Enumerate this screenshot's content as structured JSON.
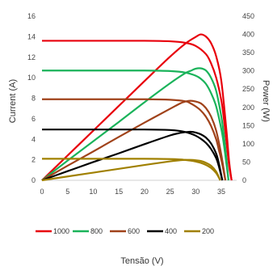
{
  "chart_data": {
    "type": "line",
    "title": "",
    "xlabel": "Tensão (V)",
    "ylabel_left": "Current (A)",
    "ylabel_right": "Power (W)",
    "xlim": [
      0,
      40
    ],
    "ylim_left": [
      0,
      16
    ],
    "ylim_right": [
      0,
      450
    ],
    "x_ticks": [
      0,
      5,
      10,
      15,
      20,
      25,
      30,
      35
    ],
    "y_left_ticks": [
      0,
      2,
      4,
      6,
      8,
      10,
      12,
      14,
      16
    ],
    "y_right_ticks": [
      0,
      50,
      100,
      150,
      200,
      250,
      300,
      350,
      400,
      450
    ],
    "grid": false,
    "legend_position": "bottom",
    "series": [
      {
        "name": "1000",
        "color": "#e8000b",
        "current": {
          "x": [
            0,
            10,
            20,
            25,
            28,
            30,
            32,
            33,
            34,
            35,
            35.5,
            36,
            36.5,
            37
          ],
          "y": [
            13.6,
            13.6,
            13.6,
            13.55,
            13.4,
            13.1,
            12.3,
            11.4,
            10.0,
            7.8,
            6.0,
            3.8,
            1.5,
            0
          ]
        },
        "power": {
          "x": [
            0,
            5,
            10,
            15,
            20,
            25,
            28,
            30,
            31,
            32,
            33,
            34,
            35,
            36,
            36.5,
            37
          ],
          "y": [
            0,
            68,
            136,
            204,
            272,
            339,
            375,
            393,
            400,
            394,
            376,
            340,
            273,
            137,
            55,
            0
          ]
        }
      },
      {
        "name": "800",
        "color": "#1ab35a",
        "current": {
          "x": [
            0,
            10,
            20,
            25,
            28,
            30,
            31,
            32,
            33,
            34,
            35,
            35.5,
            36,
            36.4
          ],
          "y": [
            10.7,
            10.7,
            10.7,
            10.65,
            10.5,
            10.2,
            9.9,
            9.4,
            8.5,
            7.2,
            5.0,
            3.5,
            1.6,
            0
          ]
        },
        "power": {
          "x": [
            0,
            5,
            10,
            15,
            20,
            25,
            28,
            29,
            30,
            31,
            32,
            33,
            34,
            35,
            35.5,
            36,
            36.4
          ],
          "y": [
            0,
            54,
            107,
            160,
            214,
            266,
            294,
            300,
            306,
            307,
            301,
            281,
            245,
            175,
            124,
            58,
            0
          ]
        }
      },
      {
        "name": "600",
        "color": "#a0421a",
        "current": {
          "x": [
            0,
            10,
            20,
            25,
            28,
            29,
            30,
            31,
            32,
            33,
            34,
            34.5,
            35,
            35.8
          ],
          "y": [
            7.9,
            7.9,
            7.9,
            7.85,
            7.7,
            7.5,
            7.2,
            6.8,
            6.2,
            5.3,
            4.0,
            3.0,
            2.0,
            0
          ]
        },
        "power": {
          "x": [
            0,
            5,
            10,
            15,
            20,
            25,
            27,
            28,
            29,
            30,
            31,
            32,
            33,
            34,
            35,
            35.8
          ],
          "y": [
            0,
            40,
            79,
            119,
            158,
            196,
            211,
            216,
            218,
            216,
            211,
            198,
            175,
            136,
            70,
            0
          ]
        }
      },
      {
        "name": "400",
        "color": "#000000",
        "current": {
          "x": [
            0,
            10,
            20,
            25,
            27,
            28,
            29,
            30,
            31,
            32,
            33,
            34,
            34.5,
            35.2
          ],
          "y": [
            4.95,
            4.95,
            4.95,
            4.9,
            4.8,
            4.7,
            4.55,
            4.35,
            4.05,
            3.65,
            3.05,
            2.15,
            1.4,
            0
          ]
        },
        "power": {
          "x": [
            0,
            5,
            10,
            15,
            20,
            25,
            27,
            28,
            29,
            30,
            31,
            32,
            33,
            34,
            34.5,
            35.2
          ],
          "y": [
            0,
            25,
            50,
            74,
            99,
            123,
            130,
            132,
            133,
            131,
            126,
            117,
            101,
            73,
            48,
            0
          ]
        }
      },
      {
        "name": "200",
        "color": "#a08000",
        "current": {
          "x": [
            0,
            10,
            20,
            25,
            27,
            28,
            29,
            30,
            31,
            32,
            33,
            34,
            34.8
          ],
          "y": [
            2.1,
            2.1,
            2.1,
            2.07,
            2.03,
            1.98,
            1.92,
            1.83,
            1.7,
            1.5,
            1.2,
            0.7,
            0
          ]
        },
        "power": {
          "x": [
            0,
            5,
            10,
            15,
            20,
            25,
            27,
            28,
            29,
            30,
            31,
            32,
            33,
            34,
            34.8
          ],
          "y": [
            0,
            10.5,
            21,
            31.5,
            42,
            52,
            55,
            56,
            56,
            55,
            53,
            48,
            40,
            24,
            0
          ]
        }
      }
    ]
  }
}
